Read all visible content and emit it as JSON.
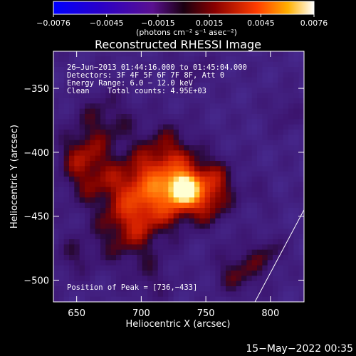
{
  "chart_data": {
    "type": "heatmap",
    "title": "Reconstructed RHESSI Image",
    "xlabel": "Heliocentric X (arcsec)",
    "ylabel": "Heliocentric Y (arcsec)",
    "xlim": [
      632,
      826
    ],
    "ylim": [
      -517,
      -321
    ],
    "x_ticks": [
      650,
      700,
      750,
      800
    ],
    "x_tick_labels": [
      "650",
      "700",
      "750",
      "800"
    ],
    "y_ticks": [
      -350,
      -400,
      -450,
      -500
    ],
    "y_tick_labels": [
      "−350",
      "−400",
      "−450",
      "−500"
    ],
    "colorbar": {
      "min": -0.0076,
      "max": 0.0076,
      "ticks": [
        -0.0076,
        -0.0045,
        -0.0015,
        0.0015,
        0.0045,
        0.0076
      ],
      "tick_labels": [
        "−0.0076",
        "−0.0045",
        "−0.0015",
        "0.0015",
        "0.0045",
        "0.0076"
      ],
      "unit_label": "(photons cm⁻² s⁻¹ asec⁻²)"
    },
    "annotations": {
      "time_range": "26−Jun−2013 01:44:16.000 to 01:45:04.000",
      "detectors": "Detectors: 3F 4F 5F 6F 7F 8F, Att 0",
      "energy": "Energy Range: 6.0 − 12.0 keV",
      "clean": "Clean    Total counts: 4.95E+03",
      "peak": "Position of Peak = [736,−433]"
    },
    "peak": {
      "x": 736,
      "y": -433
    },
    "limb_line": {
      "x": [
        788,
        826
      ],
      "y": [
        -517,
        -445
      ]
    },
    "footer_date": "15−May−2022 00:35"
  }
}
